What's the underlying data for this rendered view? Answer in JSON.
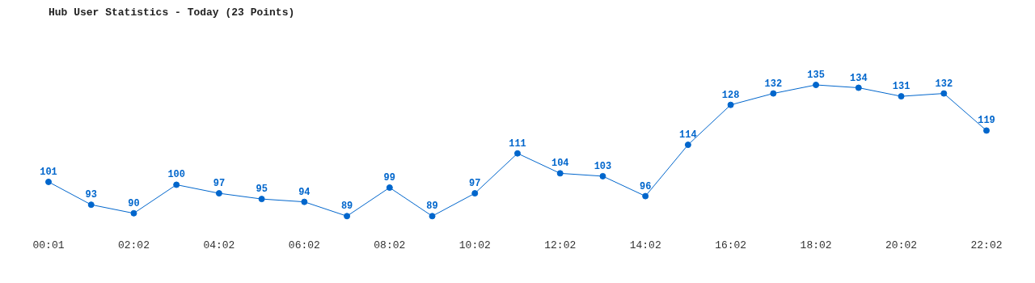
{
  "chart_data": {
    "type": "line",
    "title": "Hub User Statistics - Today (23 Points)",
    "categories": [
      "00:01",
      null,
      "02:02",
      null,
      "04:02",
      null,
      "06:02",
      null,
      "08:02",
      null,
      "10:02",
      null,
      "12:02",
      null,
      "14:02",
      null,
      "16:02",
      null,
      "18:02",
      null,
      "20:02",
      null,
      "22:02"
    ],
    "values": [
      101,
      93,
      90,
      100,
      97,
      95,
      94,
      89,
      99,
      89,
      97,
      111,
      104,
      103,
      96,
      114,
      128,
      132,
      135,
      134,
      131,
      132,
      119
    ],
    "color": "#0066cc",
    "data_labels": true,
    "grid": false,
    "legend": false,
    "marker": "circle",
    "line_style": "solid",
    "tick_labels": "x"
  }
}
